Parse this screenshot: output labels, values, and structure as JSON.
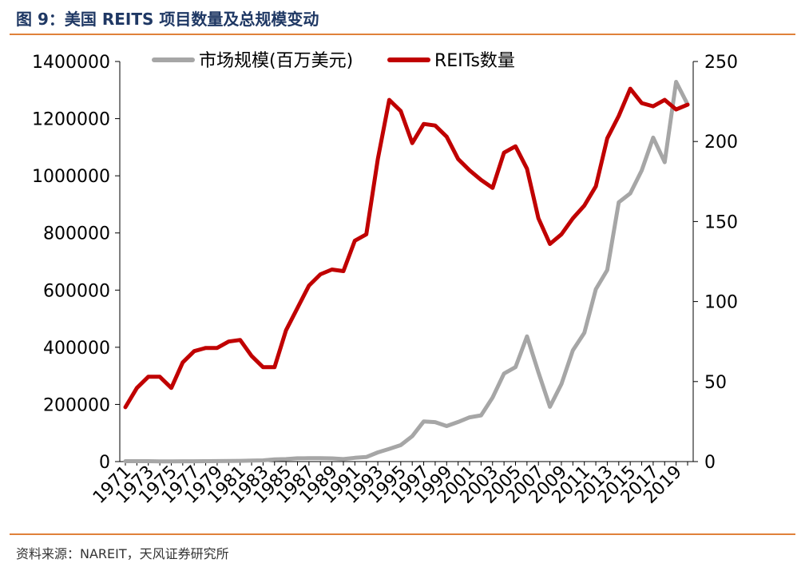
{
  "header": {
    "title": "图 9：美国 REITS 项目数量及总规模变动"
  },
  "footer": {
    "source": "资料来源：NAREIT，天风证券研究所"
  },
  "chart_data": {
    "type": "line",
    "title": "",
    "categories": [
      "1971",
      "1972",
      "1973",
      "1974",
      "1975",
      "1976",
      "1977",
      "1978",
      "1979",
      "1980",
      "1981",
      "1982",
      "1983",
      "1984",
      "1985",
      "1986",
      "1987",
      "1988",
      "1989",
      "1990",
      "1991",
      "1992",
      "1993",
      "1994",
      "1995",
      "1996",
      "1997",
      "1998",
      "1999",
      "2000",
      "2001",
      "2002",
      "2003",
      "2004",
      "2005",
      "2006",
      "2007",
      "2008",
      "2009",
      "2010",
      "2011",
      "2012",
      "2013",
      "2014",
      "2015",
      "2016",
      "2017",
      "2018",
      "2019",
      "2020"
    ],
    "x_tick_labels": [
      "1971",
      "1973",
      "1975",
      "1977",
      "1979",
      "1981",
      "1983",
      "1985",
      "1987",
      "1989",
      "1991",
      "1993",
      "1995",
      "1997",
      "1999",
      "2001",
      "2003",
      "2005",
      "2007",
      "2009",
      "2011",
      "2013",
      "2015",
      "2017",
      "2019"
    ],
    "series": [
      {
        "name": "市场规模(百万美元)",
        "axis": "left",
        "color": "#a6a6a6",
        "values": [
          1500,
          1500,
          1500,
          700,
          900,
          1000,
          1000,
          1400,
          1800,
          2300,
          2400,
          3300,
          4300,
          7700,
          8800,
          11400,
          11800,
          11600,
          11300,
          8700,
          13000,
          16000,
          32000,
          44300,
          57500,
          88800,
          140500,
          138000,
          124300,
          138700,
          154900,
          161900,
          224200,
          307900,
          330700,
          438100,
          312000,
          191700,
          271200,
          389300,
          450500,
          603400,
          670300,
          907400,
          938700,
          1018700,
          1133700,
          1047600,
          1328800,
          1250000
        ]
      },
      {
        "name": "REITs数量",
        "axis": "right",
        "color": "#c00000",
        "values": [
          34,
          46,
          53,
          53,
          46,
          62,
          69,
          71,
          71,
          75,
          76,
          66,
          59,
          59,
          82,
          96,
          110,
          117,
          120,
          119,
          138,
          142,
          189,
          226,
          219,
          199,
          211,
          210,
          203,
          189,
          182,
          176,
          171,
          193,
          197,
          183,
          152,
          136,
          142,
          152,
          160,
          172,
          202,
          216,
          233,
          224,
          222,
          226,
          220,
          223
        ]
      }
    ],
    "y_left": {
      "ticks": [
        "0",
        "200000",
        "400000",
        "600000",
        "800000",
        "1000000",
        "1200000",
        "1400000"
      ],
      "range": [
        0,
        1400000
      ]
    },
    "y_right": {
      "ticks": [
        "0",
        "50",
        "100",
        "150",
        "200",
        "250"
      ],
      "range": [
        0,
        250
      ]
    },
    "legend_position": "top-center",
    "grid": false
  }
}
